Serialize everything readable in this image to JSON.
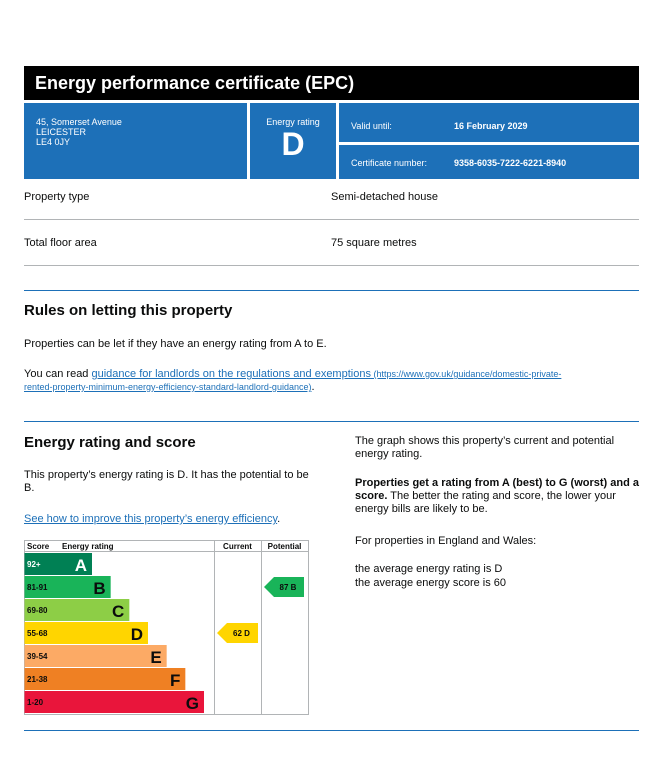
{
  "header": {
    "title": "Energy performance certificate (EPC)"
  },
  "address": {
    "line1": "45, Somerset Avenue",
    "line2": "LEICESTER",
    "line3": "LE4 0JY"
  },
  "energy_rating": {
    "label": "Energy rating",
    "value": "D"
  },
  "validity": {
    "label": "Valid until:",
    "value": "16 February 2029"
  },
  "certificate": {
    "label": "Certificate number:",
    "value": "9358-6035-7222-6221-8940"
  },
  "property": {
    "type_label": "Property type",
    "type_value": "Semi-detached house",
    "area_label": "Total floor area",
    "area_value": "75 square metres"
  },
  "letting": {
    "heading": "Rules on letting this property",
    "para1": "Properties can be let if they have an energy rating from A to E.",
    "para2_prefix": "You can read ",
    "link_text": "guidance for landlords on the regulations and exemptions",
    "link_url_line1": " (https://www.gov.uk/guidance/domestic-private-",
    "link_url_line2": "rented-property-minimum-energy-efficiency-standard-landlord-guidance)",
    "para2_suffix": "."
  },
  "score_section": {
    "heading": "Energy rating and score",
    "para1": "This property’s energy rating is D. It has the potential to be B.",
    "improve_link": "See how to improve this property’s energy efficiency",
    "improve_suffix": ".",
    "right_para1": "The graph shows this property’s current and potential energy rating.",
    "right_bold": "Properties get a rating from A (best) to G (worst) and a score.",
    "right_para2_rest": " The better the rating and score, the lower your energy bills are likely to be.",
    "right_para3": "For properties in England and Wales:",
    "avg_rating": "the average energy rating is D",
    "avg_score": "the average energy score is 60"
  },
  "chart_data": {
    "type": "bar",
    "headers": {
      "score": "Score",
      "rating": "Energy rating",
      "current": "Current",
      "potential": "Potential"
    },
    "bands": [
      {
        "range": "92+",
        "letter": "A",
        "color": "#008054"
      },
      {
        "range": "81-91",
        "letter": "B",
        "color": "#19b459"
      },
      {
        "range": "69-80",
        "letter": "C",
        "color": "#8dce46"
      },
      {
        "range": "55-68",
        "letter": "D",
        "color": "#ffd500"
      },
      {
        "range": "39-54",
        "letter": "E",
        "color": "#fcaa65"
      },
      {
        "range": "21-38",
        "letter": "F",
        "color": "#ef8023"
      },
      {
        "range": "1-20",
        "letter": "G",
        "color": "#e9153b"
      }
    ],
    "current": {
      "score": 62,
      "letter": "D",
      "label": "62 D",
      "color": "#ffd500"
    },
    "potential": {
      "score": 87,
      "letter": "B",
      "label": "87 B",
      "color": "#19b459"
    }
  }
}
